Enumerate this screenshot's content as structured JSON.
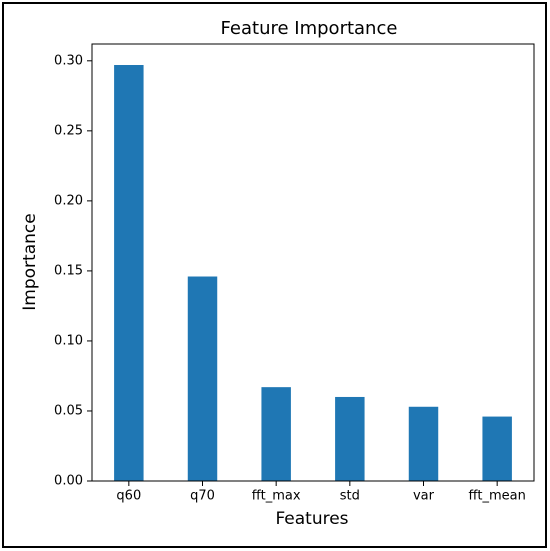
{
  "chart_data": {
    "type": "bar",
    "title": "Feature Importance",
    "x_label": "Features",
    "y_label": "Importance",
    "categories": [
      "q60",
      "q70",
      "fft_max",
      "std",
      "var",
      "fft_mean"
    ],
    "values": [
      0.297,
      0.146,
      0.067,
      0.06,
      0.053,
      0.046
    ],
    "color": "#1f77b4",
    "ylim": [
      0,
      0.312
    ],
    "yticks": [
      {
        "value": 0,
        "label": "0.00"
      },
      {
        "value": 0.05,
        "label": "0.05"
      },
      {
        "value": 0.1,
        "label": "0.10"
      },
      {
        "value": 0.15,
        "label": "0.15"
      },
      {
        "value": 0.2,
        "label": "0.20"
      },
      {
        "value": 0.25,
        "label": "0.25"
      },
      {
        "value": 0.3,
        "label": "0.30"
      }
    ],
    "grid": false
  }
}
